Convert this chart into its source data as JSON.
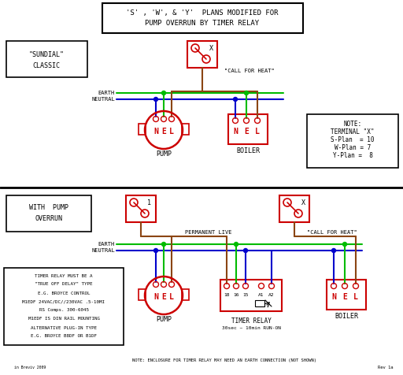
{
  "title_line1": "'S' , 'W', & 'Y'  PLANS MODIFIED FOR",
  "title_line2": "PUMP OVERRUN BY TIMER RELAY",
  "bg_color": "#ffffff",
  "red": "#cc0000",
  "green": "#00bb00",
  "blue": "#0000cc",
  "brown": "#8B4513",
  "black": "#000000",
  "note_lines": [
    "TIMER RELAY MUST BE A",
    "\"TRUE OFF DELAY\" TYPE",
    "E.G. BROYCE CONTROL",
    "M1EDF 24VAC/DC//230VAC .5-10MI",
    "RS Comps. 300-6045",
    "M1EDF IS DIN RAIL MOUNTING",
    "ALTERNATIVE PLUG-IN TYPE",
    "E.G. BROYCE B8DF OR B1DF"
  ]
}
